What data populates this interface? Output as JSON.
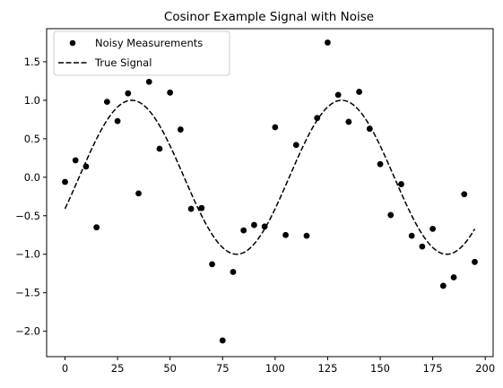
{
  "chart_data": {
    "type": "scatter",
    "title": "Cosinor Example Signal with Noise",
    "xlabel": "",
    "ylabel": "",
    "xlim": [
      -8.75,
      203.75
    ],
    "ylim": [
      -2.33,
      1.93
    ],
    "x_ticks": [
      0,
      25,
      50,
      75,
      100,
      125,
      150,
      175,
      200
    ],
    "x_tick_labels": [
      "0",
      "25",
      "50",
      "75",
      "100",
      "125",
      "150",
      "175",
      "200"
    ],
    "y_ticks": [
      -2.0,
      -1.5,
      -1.0,
      -0.5,
      0.0,
      0.5,
      1.0,
      1.5
    ],
    "y_tick_labels": [
      "−2.0",
      "−1.5",
      "−1.0",
      "−0.5",
      "0.0",
      "0.5",
      "1.0",
      "1.5"
    ],
    "grid": false,
    "legend_position": "top-left",
    "series": [
      {
        "name": "Noisy Measurements",
        "kind": "scatter",
        "color": "#000000",
        "x": [
          0,
          5,
          10,
          15,
          20,
          25,
          30,
          35,
          40,
          45,
          50,
          55,
          60,
          65,
          70,
          75,
          80,
          85,
          90,
          95,
          100,
          105,
          110,
          115,
          120,
          125,
          130,
          135,
          140,
          145,
          150,
          155,
          160,
          165,
          170,
          175,
          180,
          185,
          190,
          195
        ],
        "y": [
          -0.06,
          0.22,
          0.14,
          -0.65,
          0.98,
          0.73,
          1.09,
          -0.21,
          1.24,
          0.37,
          1.1,
          0.62,
          -0.41,
          -0.4,
          -1.13,
          -2.12,
          -1.23,
          -0.69,
          -0.62,
          -0.64,
          0.65,
          -0.75,
          0.42,
          -0.76,
          0.77,
          1.75,
          1.07,
          0.72,
          1.11,
          0.63,
          0.17,
          -0.49,
          -0.09,
          -0.76,
          -0.9,
          -0.67,
          -1.41,
          -1.3,
          -0.22,
          -1.1
        ]
      },
      {
        "name": "True Signal",
        "kind": "line",
        "color": "#000000",
        "dash": "dashed",
        "amplitude": 1.0,
        "period": 100,
        "acrophase": 31.7,
        "x_range": [
          0,
          195
        ]
      }
    ]
  }
}
